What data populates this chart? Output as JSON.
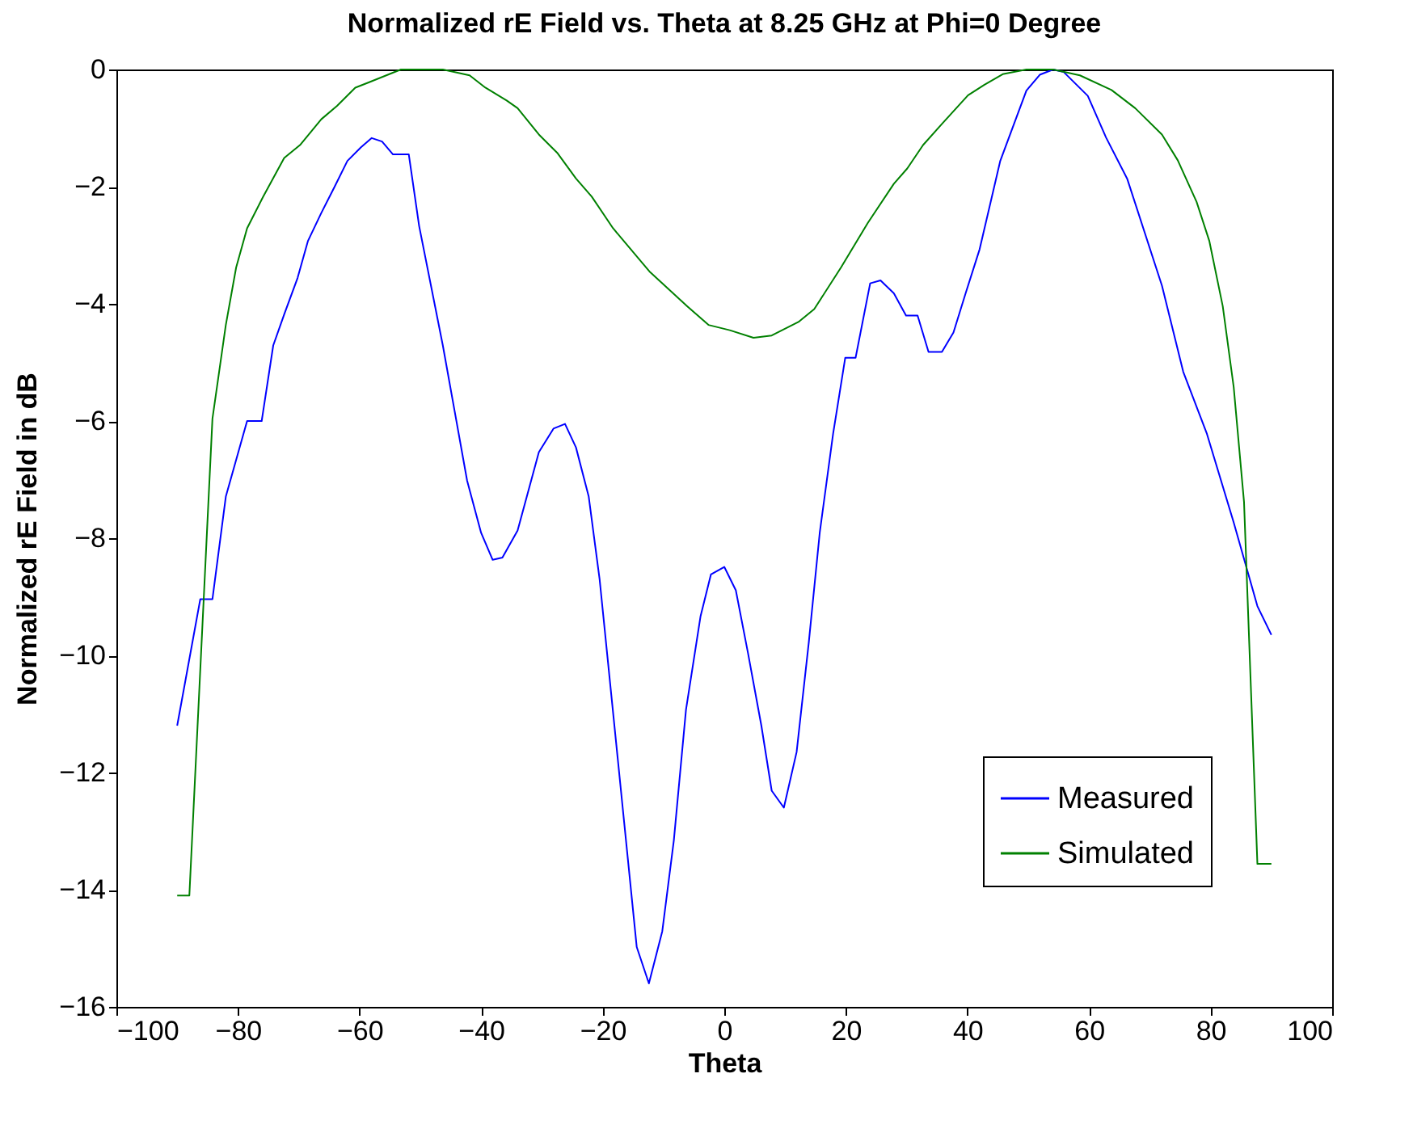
{
  "chart_data": {
    "type": "line",
    "title": "Normalized rE Field vs. Theta at 8.25 GHz at Phi=0 Degree",
    "xlabel": "Theta",
    "ylabel": "Normalized rE Field in dB",
    "xlim": [
      -100,
      100
    ],
    "xticks": [
      -100,
      -80,
      -60,
      -40,
      -20,
      0,
      20,
      40,
      60,
      80,
      100
    ],
    "ylim": [
      -16,
      0
    ],
    "yticks": [
      -16,
      -14,
      -12,
      -10,
      -8,
      -6,
      -4,
      -2,
      0
    ],
    "grid": false,
    "legend": "bottom right",
    "marker": "none",
    "line_style": "solid",
    "series": [
      {
        "name": "Measured",
        "color": "#0000ff",
        "x": [
          -90,
          -86.2,
          -84.2,
          -82,
          -78.5,
          -76.1,
          -74.2,
          -72.4,
          -70.2,
          -68.5,
          -66.3,
          -64.1,
          -62,
          -59.8,
          -58,
          -56.3,
          -54.5,
          -51.9,
          -50.2,
          -46.3,
          -42.3,
          -40,
          -38.1,
          -36.5,
          -34,
          -30.5,
          -28.1,
          -26.2,
          -24.4,
          -22.3,
          -20.5,
          -17.9,
          -14.4,
          -12.4,
          -10.2,
          -8.3,
          -6.3,
          -3.9,
          -2.2,
          0,
          1.9,
          3.9,
          6.1,
          7.8,
          9.8,
          11.9,
          13.9,
          15.7,
          17.9,
          19.9,
          21.6,
          24,
          25.7,
          27.9,
          29.9,
          31.8,
          33.6,
          35.8,
          37.7,
          39.7,
          42,
          45.4,
          49.7,
          51.9,
          54.1,
          55.8,
          59.8,
          62.8,
          66.3,
          72,
          75.5,
          79.4,
          83.8,
          87.7,
          90
        ],
        "values": [
          -11.2,
          -9.04,
          -9.04,
          -7.29,
          -6.0,
          -6.0,
          -4.71,
          -4.18,
          -3.56,
          -2.93,
          -2.45,
          -2.0,
          -1.56,
          -1.33,
          -1.17,
          -1.23,
          -1.45,
          -1.45,
          -2.67,
          -4.71,
          -7.02,
          -7.91,
          -8.37,
          -8.33,
          -7.87,
          -6.53,
          -6.13,
          -6.05,
          -6.45,
          -7.29,
          -8.71,
          -11.38,
          -14.98,
          -15.6,
          -14.71,
          -13.16,
          -10.93,
          -9.33,
          -8.62,
          -8.49,
          -8.89,
          -9.96,
          -11.2,
          -12.31,
          -12.6,
          -11.65,
          -9.78,
          -7.91,
          -6.22,
          -4.92,
          -4.92,
          -3.65,
          -3.6,
          -3.82,
          -4.2,
          -4.2,
          -4.82,
          -4.82,
          -4.49,
          -3.82,
          -3.07,
          -1.56,
          -0.36,
          -0.09,
          0,
          -0.04,
          -0.45,
          -1.16,
          -1.87,
          -3.69,
          -5.16,
          -6.22,
          -7.73,
          -9.16,
          -9.65
        ]
      },
      {
        "name": "Simulated",
        "color": "#008000",
        "x": [
          -90,
          -88,
          -84.2,
          -82,
          -80.3,
          -78.5,
          -75.9,
          -72.4,
          -69.8,
          -66.3,
          -63.7,
          -60.7,
          -58.5,
          -53.2,
          -46.3,
          -41.9,
          -39.3,
          -35.8,
          -34,
          -30.5,
          -27.5,
          -24.4,
          -21.8,
          -18.3,
          -12.2,
          -6.1,
          -2.6,
          0.9,
          4.8,
          7.8,
          12.2,
          14.8,
          19.2,
          23.6,
          27.9,
          30.1,
          32.7,
          35.8,
          40.1,
          42.8,
          45.8,
          49.7,
          54.1,
          58.5,
          63.7,
          67.6,
          72,
          74.6,
          77.7,
          79.8,
          82,
          83.8,
          85.5,
          87.7,
          90
        ],
        "values": [
          -14.1,
          -14.1,
          -5.96,
          -4.36,
          -3.38,
          -2.71,
          -2.18,
          -1.51,
          -1.29,
          -0.85,
          -0.62,
          -0.31,
          -0.22,
          0,
          0,
          -0.1,
          -0.31,
          -0.53,
          -0.66,
          -1.11,
          -1.42,
          -1.86,
          -2.17,
          -2.71,
          -3.46,
          -4.04,
          -4.36,
          -4.45,
          -4.58,
          -4.54,
          -4.31,
          -4.09,
          -3.38,
          -2.62,
          -1.95,
          -1.69,
          -1.29,
          -0.93,
          -0.44,
          -0.26,
          -0.08,
          0,
          0,
          -0.1,
          -0.35,
          -0.66,
          -1.11,
          -1.55,
          -2.26,
          -2.93,
          -4.04,
          -5.42,
          -7.38,
          -13.56,
          -13.56
        ]
      }
    ]
  }
}
